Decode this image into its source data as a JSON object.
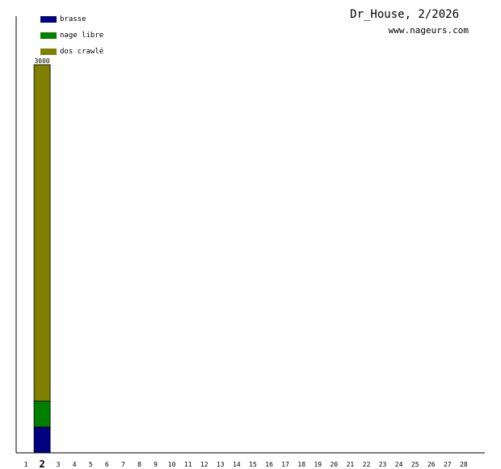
{
  "header": {
    "title": "Dr_House, 2/2026",
    "site": "www.nageurs.com"
  },
  "chart_data": {
    "type": "bar",
    "stacked": true,
    "categories": [
      "1",
      "2",
      "3",
      "4",
      "5",
      "6",
      "7",
      "8",
      "9",
      "10",
      "11",
      "12",
      "13",
      "14",
      "15",
      "16",
      "17",
      "18",
      "19",
      "20",
      "21",
      "22",
      "23",
      "24",
      "25",
      "26",
      "27",
      "28"
    ],
    "highlighted_category": "2",
    "series": [
      {
        "name": "brasse",
        "color": "#000080",
        "values": [
          0,
          200,
          0,
          0,
          0,
          0,
          0,
          0,
          0,
          0,
          0,
          0,
          0,
          0,
          0,
          0,
          0,
          0,
          0,
          0,
          0,
          0,
          0,
          0,
          0,
          0,
          0,
          0
        ]
      },
      {
        "name": "nage libre",
        "color": "#008000",
        "values": [
          0,
          200,
          0,
          0,
          0,
          0,
          0,
          0,
          0,
          0,
          0,
          0,
          0,
          0,
          0,
          0,
          0,
          0,
          0,
          0,
          0,
          0,
          0,
          0,
          0,
          0,
          0,
          0
        ]
      },
      {
        "name": "dos crawlé",
        "color": "#808000",
        "values": [
          0,
          2600,
          0,
          0,
          0,
          0,
          0,
          0,
          0,
          0,
          0,
          0,
          0,
          0,
          0,
          0,
          0,
          0,
          0,
          0,
          0,
          0,
          0,
          0,
          0,
          0,
          0,
          0
        ]
      }
    ],
    "totals": [
      null,
      3000,
      null,
      null,
      null,
      null,
      null,
      null,
      null,
      null,
      null,
      null,
      null,
      null,
      null,
      null,
      null,
      null,
      null,
      null,
      null,
      null,
      null,
      null,
      null,
      null,
      null,
      null
    ],
    "ylim": [
      0,
      3000
    ],
    "grid": false,
    "legend_position": "top-left"
  }
}
